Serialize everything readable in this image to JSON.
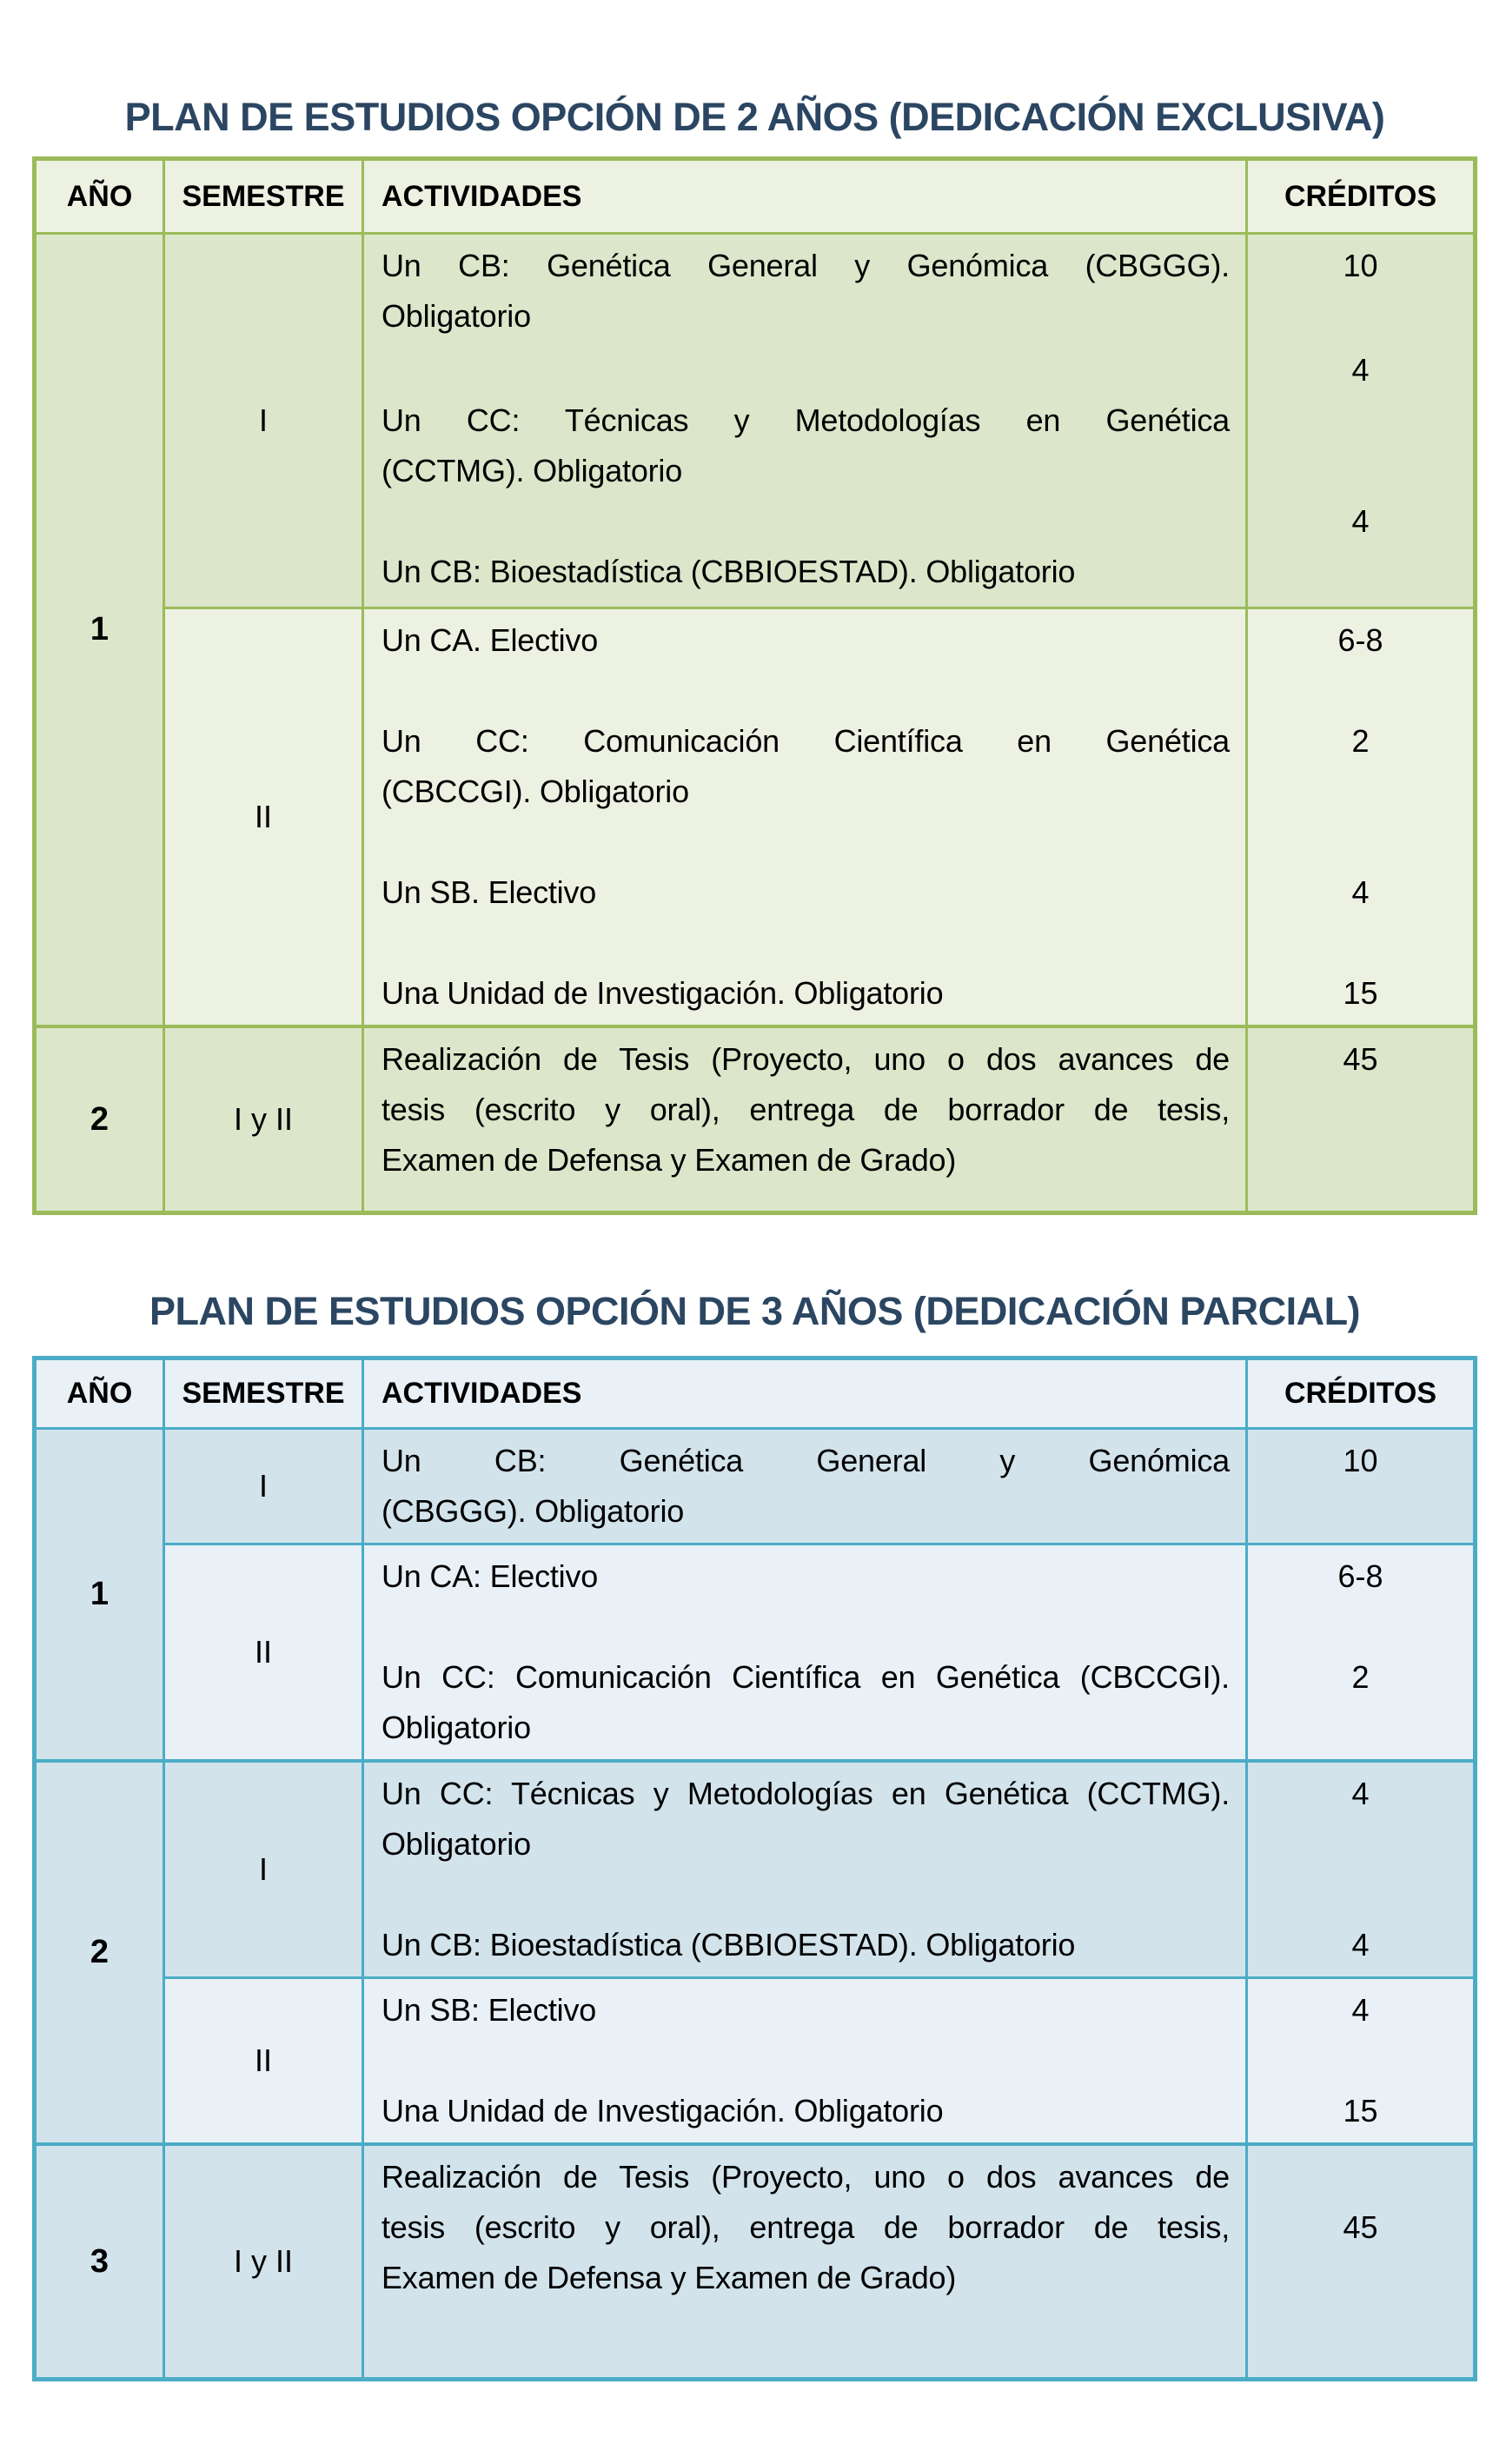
{
  "tables": [
    {
      "title": "PLAN DE ESTUDIOS OPCIÓN DE 2 AÑOS (DEDICACIÓN EXCLUSIVA)",
      "theme": {
        "accent": "#9BBB59",
        "band_a": "#DCE6CA",
        "band_b": "#EDF1E2",
        "header_bg": "#EDF1E2",
        "title_color": "#2B4662",
        "style": "--accent:#9BBB59;--band-a:#DCE6CA;--band-b:#EDF1E2;--header-bg:#EDF1E2"
      },
      "columns": {
        "year": "AÑO",
        "semester": "SEMESTRE",
        "activities": "ACTIVIDADES",
        "credits": "CRÉDITOS"
      },
      "years": [
        {
          "year": "1",
          "semesters": [
            {
              "label": "I",
              "activities": [
                {
                  "lines": [
                    "Un CB:  Genética General y Genómica (CBGGG).",
                    "Obligatorio"
                  ],
                  "credit": "10"
                },
                {
                  "lines": [
                    "Un CC: Técnicas y Metodologías en Genética",
                    "(CCTMG). Obligatorio"
                  ],
                  "credit": "4"
                },
                {
                  "lines": [
                    "Un CB: Bioestadística (CBBIOESTAD). Obligatorio"
                  ],
                  "credit": "4"
                }
              ]
            },
            {
              "label": "II",
              "activities": [
                {
                  "lines": [
                    "Un CA. Electivo"
                  ],
                  "credit": "6-8"
                },
                {
                  "lines": [
                    "Un CC: Comunicación Científica en Genética",
                    "(CBCCGI). Obligatorio"
                  ],
                  "credit": "2"
                },
                {
                  "lines": [
                    "Un SB. Electivo"
                  ],
                  "credit": "4"
                },
                {
                  "lines": [
                    "Una Unidad de Investigación. Obligatorio"
                  ],
                  "credit": "15"
                }
              ]
            }
          ]
        },
        {
          "year": "2",
          "semesters": [
            {
              "label": "I y II",
              "activities": [
                {
                  "lines": [
                    "Realización de Tesis (Proyecto, uno o dos avances de",
                    "tesis (escrito y oral), entrega de borrador de tesis,",
                    "Examen de Defensa y Examen de Grado)"
                  ],
                  "credit": "45"
                }
              ]
            }
          ]
        }
      ]
    },
    {
      "title": "PLAN DE ESTUDIOS OPCIÓN DE 3 AÑOS (DEDICACIÓN PARCIAL)",
      "theme": {
        "accent": "#4BACC6",
        "band_a": "#D2E3EC",
        "band_b": "#E9F1F6",
        "header_bg": "#E9F1F6",
        "title_color": "#2B4662",
        "style": "--accent:#4BACC6;--band-a:#D2E3EC;--band-b:#E9F1F6;--header-bg:#E9F1F6"
      },
      "columns": {
        "year": "AÑO",
        "semester": "SEMESTRE",
        "activities": "ACTIVIDADES",
        "credits": "CRÉDITOS"
      },
      "years": [
        {
          "year": "1",
          "semesters": [
            {
              "label": "I",
              "activities": [
                {
                  "lines": [
                    "Un CB: Genética General y Genómica",
                    "(CBGGG). Obligatorio"
                  ],
                  "credit": "10"
                }
              ]
            },
            {
              "label": "II",
              "activities": [
                {
                  "lines": [
                    "Un CA: Electivo"
                  ],
                  "credit": "6-8"
                },
                {
                  "lines": [
                    "Un CC: Comunicación Científica en Genética (CBCCGI).",
                    "Obligatorio"
                  ],
                  "credit": "2"
                }
              ]
            }
          ]
        },
        {
          "year": "2",
          "semesters": [
            {
              "label": "I",
              "activities": [
                {
                  "lines": [
                    "Un CC: Técnicas y Metodologías en Genética (CCTMG).",
                    "Obligatorio"
                  ],
                  "credit": "4"
                },
                {
                  "lines": [
                    "Un CB: Bioestadística (CBBIOESTAD). Obligatorio"
                  ],
                  "credit": "4"
                }
              ]
            },
            {
              "label": "II",
              "activities": [
                {
                  "lines": [
                    "Un SB: Electivo"
                  ],
                  "credit": "4"
                },
                {
                  "lines": [
                    "Una Unidad de Investigación. Obligatorio"
                  ],
                  "credit": "15"
                }
              ]
            }
          ]
        },
        {
          "year": "3",
          "semesters": [
            {
              "label": "I y II",
              "activities": [
                {
                  "lines": [
                    "Realización de Tesis (Proyecto, uno o dos avances de",
                    "tesis (escrito y oral), entrega de borrador de tesis,",
                    "Examen de Defensa y Examen de Grado)"
                  ],
                  "credit": "45"
                }
              ]
            }
          ]
        }
      ]
    }
  ]
}
